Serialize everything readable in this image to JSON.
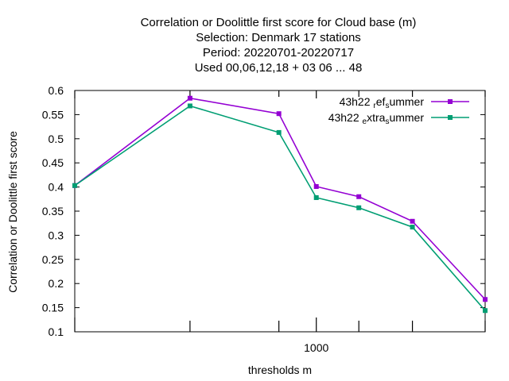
{
  "chart_data": {
    "type": "line",
    "title_lines": [
      "Correlation or Doolittle first score  for Cloud base (m)",
      "Selection: Denmark     17 stations",
      "Period: 20220701-20220717",
      "Used  00,06,12,18  + 03 06 ... 48"
    ],
    "xlabel": "thresholds m",
    "ylabel": "Correlation or Doolittle first score",
    "x_scale": "log",
    "x_tick_labels": [
      "1000"
    ],
    "y_ticks": [
      "0.1",
      "0.15",
      "0.2",
      "0.25",
      "0.3",
      "0.35",
      "0.4",
      "0.45",
      "0.5",
      "0.55",
      "0.6"
    ],
    "ylim": [
      0.1,
      0.6
    ],
    "x": [
      100,
      300,
      700,
      1000,
      1500,
      2500,
      5000
    ],
    "series": [
      {
        "name_main": "43h22",
        "name_parts": [
          {
            "t": "r",
            "sub": true
          },
          {
            "t": "ef",
            "sub": false
          },
          {
            "t": "s",
            "sub": true
          },
          {
            "t": "ummer",
            "sub": false
          }
        ],
        "color": "#9400d3",
        "values": [
          0.403,
          0.584,
          0.552,
          0.401,
          0.38,
          0.329,
          0.167
        ]
      },
      {
        "name_main": "43h22",
        "name_parts": [
          {
            "t": "e",
            "sub": true
          },
          {
            "t": "xtra",
            "sub": false
          },
          {
            "t": "s",
            "sub": true
          },
          {
            "t": "ummer",
            "sub": false
          }
        ],
        "color": "#009e73",
        "values": [
          0.403,
          0.568,
          0.513,
          0.378,
          0.357,
          0.317,
          0.144
        ]
      }
    ],
    "legend_position": "top-right",
    "grid": false
  }
}
